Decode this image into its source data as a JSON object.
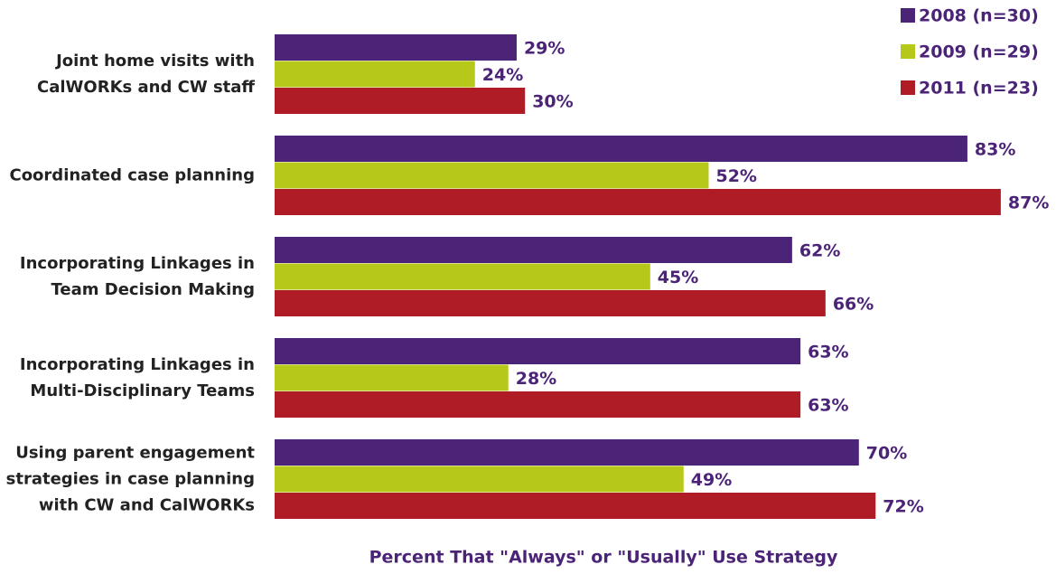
{
  "chart_data": {
    "type": "bar",
    "orientation": "horizontal",
    "categories": [
      "Joint home visits with\nCalWORKs and CW staff",
      "Coordinated case planning",
      "Incorporating Linkages in\nTeam Decision Making",
      "Incorporating Linkages in\nMulti-Disciplinary Teams",
      "Using parent engagement\nstrategies in case planning\nwith CW and CalWORKs"
    ],
    "series": [
      {
        "name": "2008 (n=30)",
        "color": "#4b2478",
        "values": [
          29,
          83,
          62,
          63,
          70
        ],
        "value_labels": [
          "29%",
          "83%",
          "62%",
          "63%",
          "70%"
        ]
      },
      {
        "name": "2009 (n=29)",
        "color": "#b6c91b",
        "values": [
          24,
          52,
          45,
          28,
          49
        ],
        "value_labels": [
          "24%",
          "52%",
          "45%",
          "28%",
          "49%"
        ]
      },
      {
        "name": "2011 (n=23)",
        "color": "#b01c25",
        "values": [
          30,
          87,
          66,
          63,
          72
        ],
        "value_labels": [
          "30%",
          "87%",
          "66%",
          "63%",
          "72%"
        ]
      }
    ],
    "xlabel": "Percent That \"Always\" or \"Usually\" Use Strategy",
    "legend": "top-right"
  }
}
